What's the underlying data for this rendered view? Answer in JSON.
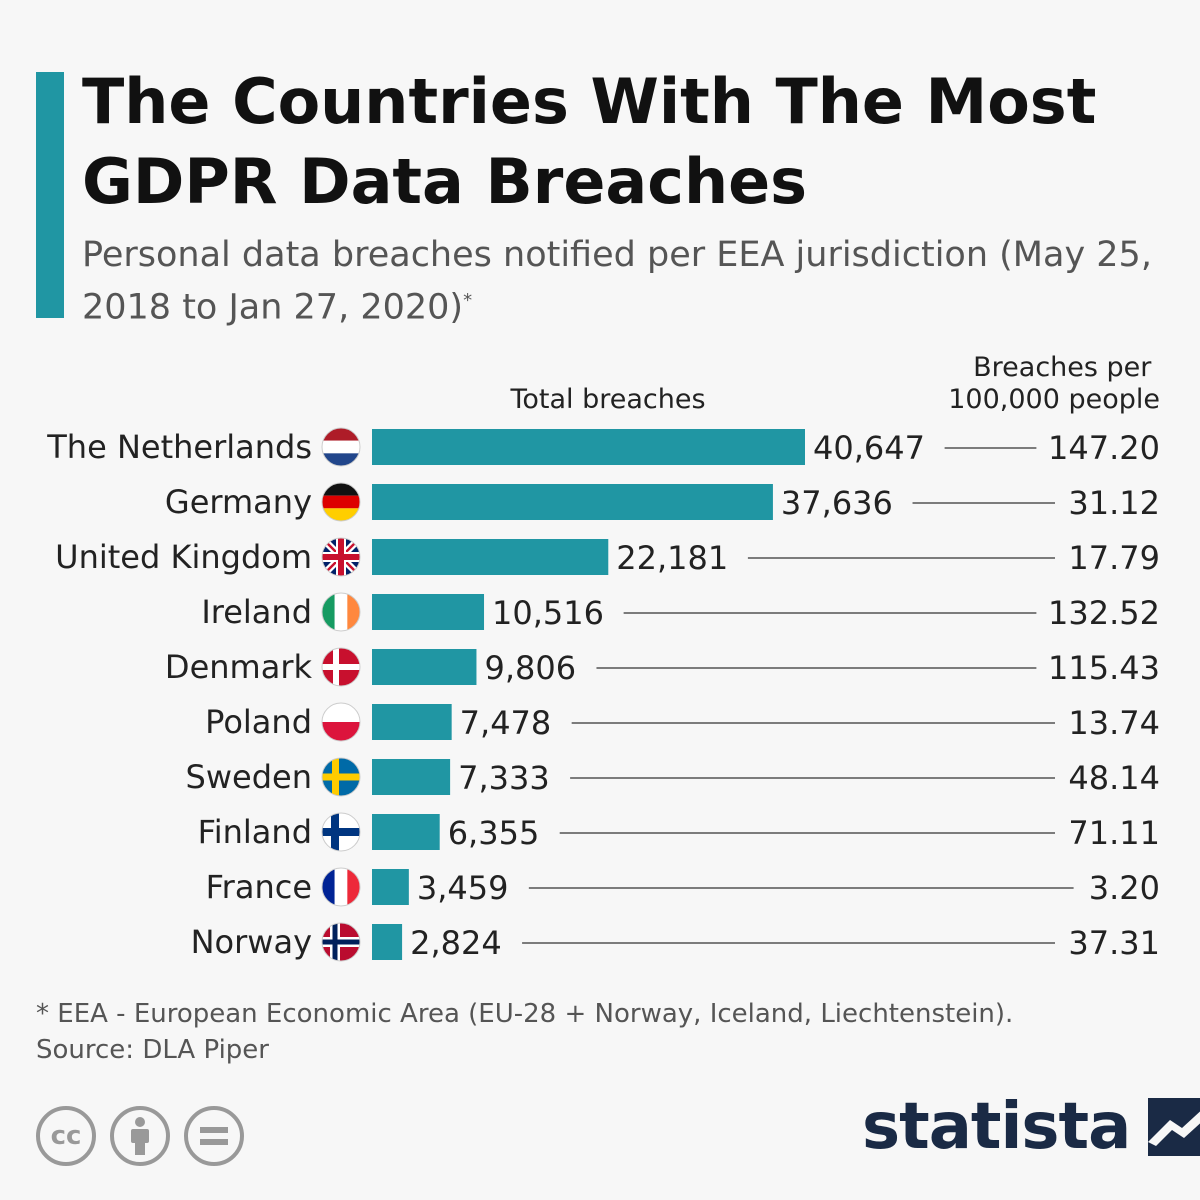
{
  "title": "The Countries With The Most GDPR Data Breaches",
  "subtitle": "Personal data breaches notified per EEA jurisdiction (May 25, 2018 to Jan 27, 2020)",
  "subtitle_mark": "*",
  "footnote": "* EEA - European Economic Area (EU-28 + Norway, Iceland, Liechtenstein).",
  "source": "Source: DLA Piper",
  "brand": "statista",
  "colors": {
    "accent": "#2096a3",
    "bar": "#2096a3",
    "connector": "#333333"
  },
  "icons": [
    "creative-commons-icon",
    "attribution-icon",
    "no-derivatives-icon",
    "statista-logo-icon"
  ],
  "chart_data": {
    "type": "bar",
    "orientation": "horizontal",
    "column_headers": {
      "total": "Total breaches",
      "per_capita": "Breaches per 100,000 people"
    },
    "categories": [
      "The Netherlands",
      "Germany",
      "United Kingdom",
      "Ireland",
      "Denmark",
      "Poland",
      "Sweden",
      "Finland",
      "France",
      "Norway"
    ],
    "series": [
      {
        "name": "Total breaches",
        "values": [
          40647,
          37636,
          22181,
          10516,
          9806,
          7478,
          7333,
          6355,
          3459,
          2824
        ],
        "labels": [
          "40,647",
          "37,636",
          "22,181",
          "10,516",
          "9,806",
          "7,478",
          "7,333",
          "6,355",
          "3,459",
          "2,824"
        ]
      },
      {
        "name": "Breaches per 100,000 people",
        "values": [
          147.2,
          31.12,
          17.79,
          132.52,
          115.43,
          13.74,
          48.14,
          71.11,
          3.2,
          37.31
        ],
        "labels": [
          "147.20",
          "31.12",
          "17.79",
          "132.52",
          "115.43",
          "13.74",
          "48.14",
          "71.11",
          "3.20",
          "37.31"
        ]
      }
    ],
    "flags": [
      "nl",
      "de",
      "gb",
      "ie",
      "dk",
      "pl",
      "se",
      "fi",
      "fr",
      "no"
    ],
    "xlim": [
      0,
      40647
    ]
  }
}
